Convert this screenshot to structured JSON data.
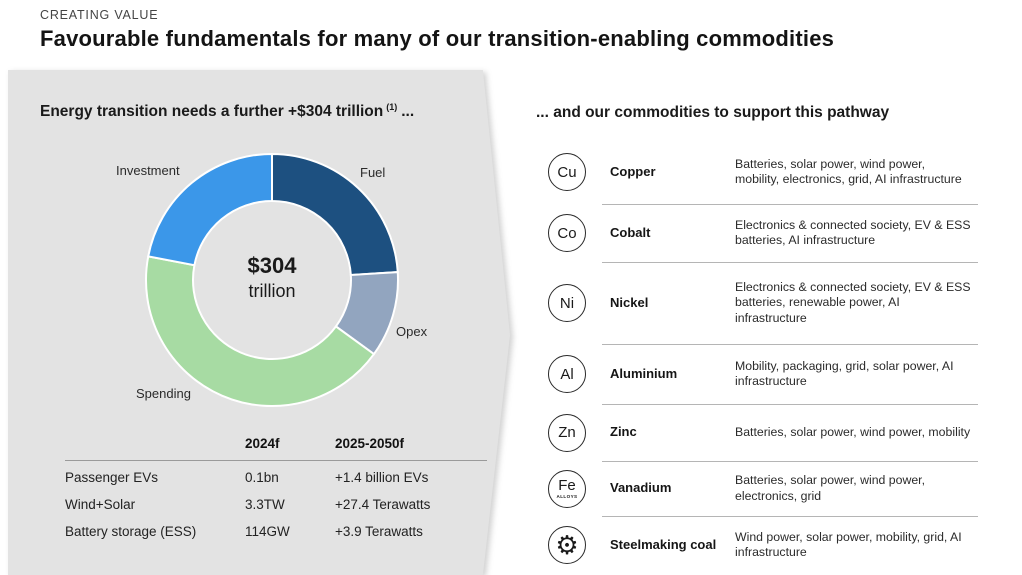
{
  "header": {
    "eyebrow": "CREATING VALUE",
    "title": "Favourable fundamentals for many of our transition-enabling commodities"
  },
  "left_panel": {
    "heading": "Energy transition needs a further +$304 trillion",
    "heading_superscript": "(1)",
    "heading_suffix": "..."
  },
  "right_panel": {
    "heading": "... and our commodities to support this pathway",
    "commodities": [
      {
        "symbol": "Cu",
        "name": "Copper",
        "description": "Batteries, solar power, wind power, mobility, electronics, grid, AI infrastructure"
      },
      {
        "symbol": "Co",
        "name": "Cobalt",
        "description": "Electronics & connected society, EV & ESS batteries, AI infrastructure"
      },
      {
        "symbol": "Ni",
        "name": "Nickel",
        "description": "Electronics & connected society, EV & ESS batteries, renewable power, AI infrastructure"
      },
      {
        "symbol": "Al",
        "name": "Aluminium",
        "description": "Mobility, packaging, grid, solar power, AI infrastructure"
      },
      {
        "symbol": "Zn",
        "name": "Zinc",
        "description": "Batteries, solar power, wind power, mobility"
      },
      {
        "symbol": "Fe",
        "symbol_sub": "ALLOYS",
        "name": "Vanadium",
        "description": "Batteries, solar power, wind power, electronics, grid"
      },
      {
        "symbol": "⚙",
        "symbol_type": "gear-icon",
        "name": "Steelmaking coal",
        "description": "Wind power, solar power, mobility, grid, AI infrastructure"
      }
    ]
  },
  "chart_data": [
    {
      "type": "pie",
      "subtype": "donut",
      "title": "Energy transition needs a further +$304 trillion (1) ...",
      "center_label": {
        "value": "$304",
        "unit": "trillion"
      },
      "direction": "clockwise",
      "start_angle_deg": 0,
      "units": "percent share of $304 trillion (estimated from arc angles)",
      "legend_position": "outside-labels",
      "segments": [
        {
          "label": "Fuel",
          "value": 24,
          "color": "#1d5080"
        },
        {
          "label": "Opex",
          "value": 11,
          "color": "#92a5bf"
        },
        {
          "label": "Spending",
          "value": 43,
          "color": "#a7dba3"
        },
        {
          "label": "Investment",
          "value": 22,
          "color": "#3b97e9"
        }
      ]
    },
    {
      "type": "table",
      "columns": [
        "",
        "2024f",
        "2025-2050f"
      ],
      "rows": [
        [
          "Passenger EVs",
          "0.1bn",
          "+1.4 billion EVs"
        ],
        [
          "Wind+Solar",
          "3.3TW",
          "+27.4 Terawatts"
        ],
        [
          "Battery storage (ESS)",
          "114GW",
          "+3.9 Terawatts"
        ]
      ]
    }
  ],
  "colors": {
    "panel_background": "#e3e3e3",
    "accent_navy": "#1d5080",
    "accent_blue": "#3b97e9",
    "accent_green": "#a7dba3",
    "accent_grayblue": "#92a5bf"
  }
}
